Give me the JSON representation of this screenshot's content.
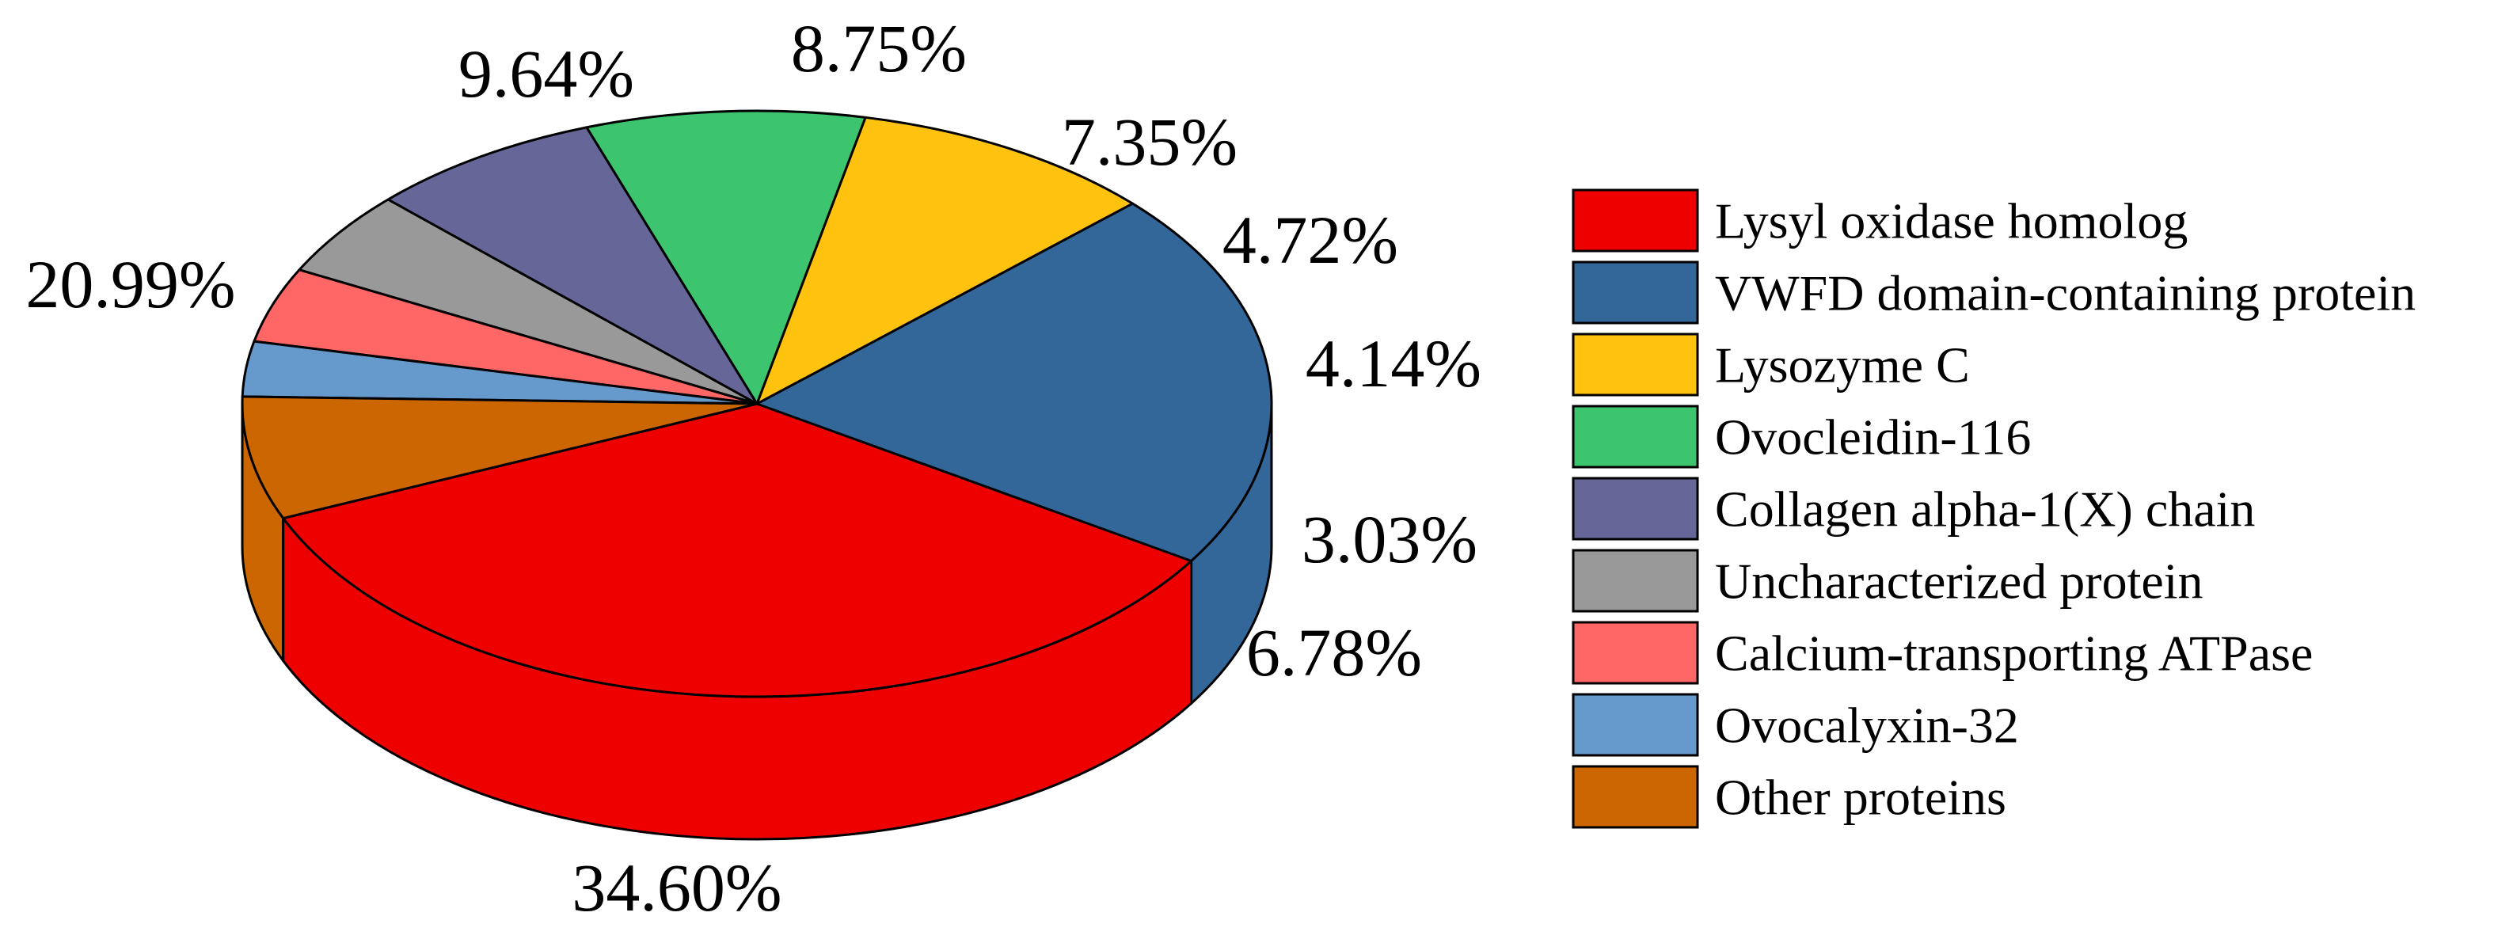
{
  "chart_data": {
    "type": "pie",
    "style": "3d",
    "legend_position": "right",
    "slices": [
      {
        "label": "Lysyl oxidase homolog",
        "value": 34.6,
        "value_label": "34.60%",
        "color": "#ee0000"
      },
      {
        "label": "VWFD domain-containing protein",
        "value": 20.99,
        "value_label": "20.99%",
        "color": "#336699"
      },
      {
        "label": "Lysozyme C",
        "value": 9.64,
        "value_label": "9.64%",
        "color": "#ffc20e"
      },
      {
        "label": "Ovocleidin-116",
        "value": 8.75,
        "value_label": "8.75%",
        "color": "#3cc46f"
      },
      {
        "label": "Collagen alpha-1(X) chain",
        "value": 7.35,
        "value_label": "7.35%",
        "color": "#666699"
      },
      {
        "label": "Uncharacterized protein",
        "value": 4.72,
        "value_label": "4.72%",
        "color": "#999999"
      },
      {
        "label": "Calcium-transporting ATPase",
        "value": 4.14,
        "value_label": "4.14%",
        "color": "#ff6666"
      },
      {
        "label": "Ovocalyxin-32",
        "value": 3.03,
        "value_label": "3.03%",
        "color": "#6699cc"
      },
      {
        "label": "Other proteins",
        "value": 6.78,
        "value_label": "6.78%",
        "color": "#cc6600"
      }
    ]
  }
}
